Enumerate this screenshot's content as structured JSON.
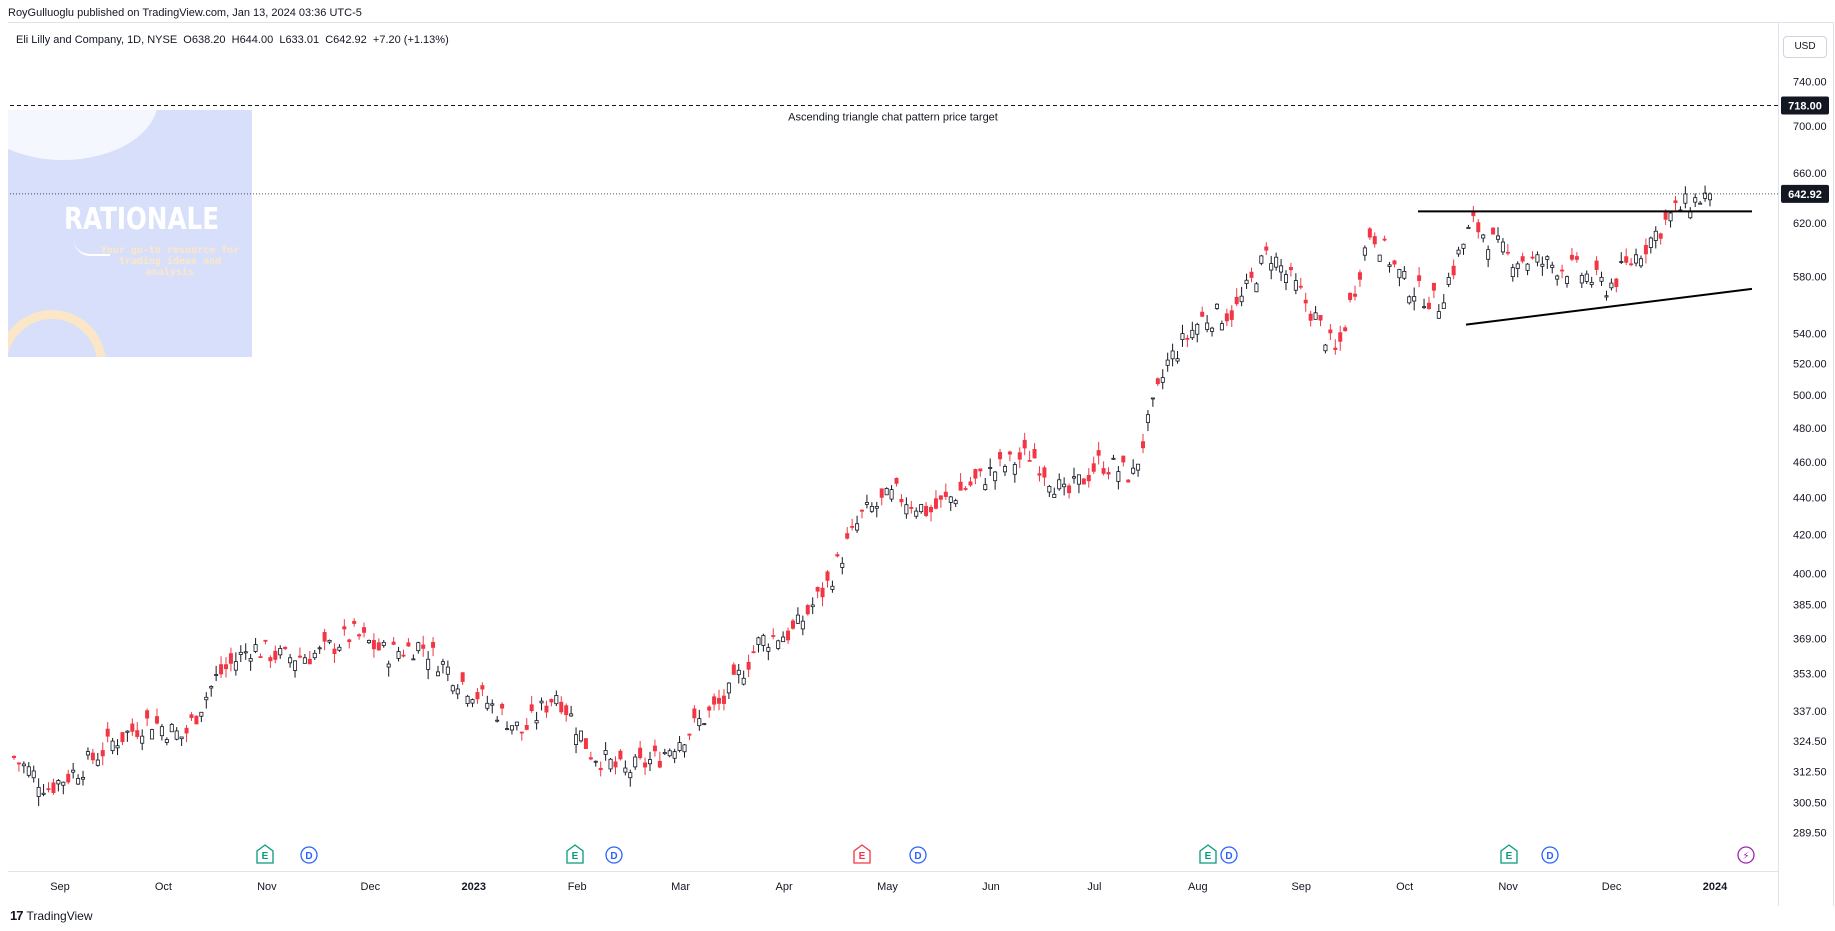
{
  "header": {
    "published": "RoyGulluoglu published on TradingView.com, Jan 13, 2024 03:36 UTC-5",
    "legend": "Eli Lilly and Company, 1D, NYSE  O638.20  H644.00  L633.01  C642.92  +7.20 (+1.13%)"
  },
  "watermark": {
    "title": "RATIONALE",
    "subtitle": "Your go-to resource for trading ideas and analysis"
  },
  "footer": {
    "logo": "17",
    "brand": "TradingView"
  },
  "currency": "USD",
  "colors": {
    "up": "#131722",
    "down": "#f23645",
    "grid": "#f0f3fa",
    "event_green": "#089981",
    "event_blue": "#2962ff",
    "event_red": "#f23645",
    "event_purple": "#9c27b0"
  },
  "chart_data": {
    "type": "candlestick",
    "symbol": "Eli Lilly and Company, 1D, NYSE",
    "ylim": [
      285,
      760
    ],
    "scale": "log",
    "y_ticks": [
      "740.00",
      "700.00",
      "660.00",
      "620.00",
      "580.00",
      "540.00",
      "520.00",
      "500.00",
      "480.00",
      "460.00",
      "440.00",
      "420.00",
      "400.00",
      "385.00",
      "369.00",
      "353.00",
      "337.00",
      "324.50",
      "312.50",
      "300.50",
      "289.50"
    ],
    "x_ticks": [
      "Sep",
      "Oct",
      "Nov",
      "Dec",
      "2023",
      "Feb",
      "Mar",
      "Apr",
      "May",
      "Jun",
      "Jul",
      "Aug",
      "Sep",
      "Oct",
      "Nov",
      "Dec",
      "2024"
    ],
    "last_price": "642.92",
    "target_price": "718.00",
    "target_label": "Ascending triangle chat pattern price target",
    "points": [
      {
        "label": "Sep",
        "close": 318
      },
      {
        "label": "Sep",
        "close": 306
      },
      {
        "label": "Sep",
        "close": 314
      },
      {
        "label": "Oct",
        "close": 325
      },
      {
        "label": "Oct",
        "close": 333
      },
      {
        "label": "Oct",
        "close": 326
      },
      {
        "label": "Nov",
        "close": 352
      },
      {
        "label": "Nov",
        "close": 365
      },
      {
        "label": "Nov",
        "close": 360
      },
      {
        "label": "Dec",
        "close": 362
      },
      {
        "label": "Dec",
        "close": 371
      },
      {
        "label": "Dec",
        "close": 362
      },
      {
        "label": "2023",
        "close": 366
      },
      {
        "label": "2023",
        "close": 352
      },
      {
        "label": "2023",
        "close": 340
      },
      {
        "label": "Feb",
        "close": 328
      },
      {
        "label": "Feb",
        "close": 345
      },
      {
        "label": "Feb",
        "close": 320
      },
      {
        "label": "Mar",
        "close": 312
      },
      {
        "label": "Mar",
        "close": 318
      },
      {
        "label": "Mar",
        "close": 330
      },
      {
        "label": "Apr",
        "close": 342
      },
      {
        "label": "Apr",
        "close": 368
      },
      {
        "label": "Apr",
        "close": 372
      },
      {
        "label": "May",
        "close": 395
      },
      {
        "label": "May",
        "close": 430
      },
      {
        "label": "May",
        "close": 442
      },
      {
        "label": "Jun",
        "close": 432
      },
      {
        "label": "Jun",
        "close": 445
      },
      {
        "label": "Jun",
        "close": 456
      },
      {
        "label": "Jul",
        "close": 465
      },
      {
        "label": "Jul",
        "close": 440
      },
      {
        "label": "Jul",
        "close": 460
      },
      {
        "label": "Aug",
        "close": 452
      },
      {
        "label": "Aug",
        "close": 520
      },
      {
        "label": "Aug",
        "close": 550
      },
      {
        "label": "Sep",
        "close": 555
      },
      {
        "label": "Sep",
        "close": 598
      },
      {
        "label": "Sep",
        "close": 565
      },
      {
        "label": "Oct",
        "close": 525
      },
      {
        "label": "Oct",
        "close": 615
      },
      {
        "label": "Oct",
        "close": 575
      },
      {
        "label": "Nov",
        "close": 560
      },
      {
        "label": "Nov",
        "close": 620
      },
      {
        "label": "Nov",
        "close": 595
      },
      {
        "label": "Dec",
        "close": 590
      },
      {
        "label": "Dec",
        "close": 585
      },
      {
        "label": "Dec",
        "close": 572
      },
      {
        "label": "2024",
        "close": 600
      },
      {
        "label": "2024",
        "close": 630
      },
      {
        "label": "2024",
        "close": 642.92
      }
    ],
    "events": [
      {
        "x_label": "Nov",
        "kind": "E"
      },
      {
        "x_label": "Nov",
        "kind": "D"
      },
      {
        "x_label": "Feb",
        "kind": "E"
      },
      {
        "x_label": "Feb",
        "kind": "D"
      },
      {
        "x_label": "May",
        "kind": "E"
      },
      {
        "x_label": "May",
        "kind": "D"
      },
      {
        "x_label": "Aug",
        "kind": "E"
      },
      {
        "x_label": "Aug",
        "kind": "D"
      },
      {
        "x_label": "Nov",
        "kind": "E"
      },
      {
        "x_label": "Nov",
        "kind": "D"
      },
      {
        "x_label": "2024",
        "kind": "⚡"
      }
    ]
  }
}
